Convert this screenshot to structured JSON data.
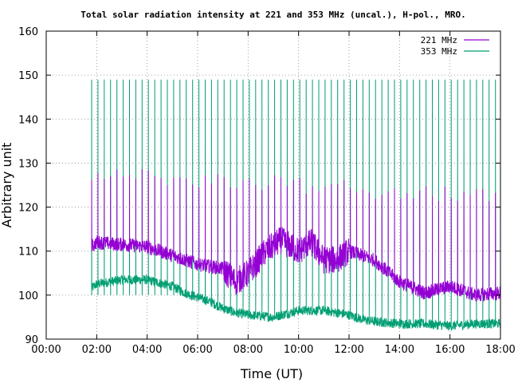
{
  "chart_data": {
    "type": "line",
    "title": "Total solar radiation intensity at 221 and 353 MHz (uncal.), H-pol., MRO.",
    "xlabel": "Time (UT)",
    "ylabel": "Arbitrary unit",
    "xlim": [
      0,
      18
    ],
    "ylim": [
      90,
      160
    ],
    "x_ticks": [
      "00:00",
      "02:00",
      "04:00",
      "06:00",
      "08:00",
      "10:00",
      "12:00",
      "14:00",
      "16:00",
      "18:00"
    ],
    "y_ticks": [
      "90",
      "100",
      "110",
      "120",
      "130",
      "140",
      "150",
      "160"
    ],
    "grid": true,
    "legend_position": "top-right",
    "spike_interval_hours": 0.25,
    "series": [
      {
        "name": "221 MHz",
        "color": "#9400d3",
        "data_start_hour": 1.8,
        "spike_low": 112,
        "spike_high_start": 128,
        "spike_high_end": 122,
        "baseline": [
          [
            1.8,
            111
          ],
          [
            2,
            112
          ],
          [
            3,
            111.5
          ],
          [
            4,
            111
          ],
          [
            5,
            109
          ],
          [
            6,
            107
          ],
          [
            7,
            106
          ],
          [
            7.5,
            103
          ],
          [
            8,
            105
          ],
          [
            8.7,
            110
          ],
          [
            9.3,
            112.5
          ],
          [
            10,
            110
          ],
          [
            10.5,
            112
          ],
          [
            11,
            108
          ],
          [
            11.5,
            108
          ],
          [
            12,
            110
          ],
          [
            13,
            108
          ],
          [
            14,
            103
          ],
          [
            15,
            100.5
          ],
          [
            16,
            102
          ],
          [
            17,
            100
          ],
          [
            18,
            100.5
          ]
        ]
      },
      {
        "name": "353 MHz",
        "color": "#009e73",
        "data_start_hour": 1.8,
        "spike_low": 100,
        "spike_high": 149,
        "baseline": [
          [
            1.8,
            101.5
          ],
          [
            2,
            102.5
          ],
          [
            3,
            103.5
          ],
          [
            4,
            103.5
          ],
          [
            5,
            102
          ],
          [
            5.5,
            100.5
          ],
          [
            6,
            99.5
          ],
          [
            6.5,
            98.5
          ],
          [
            7,
            97
          ],
          [
            7.5,
            96
          ],
          [
            8,
            95.5
          ],
          [
            9,
            95
          ],
          [
            10,
            96.5
          ],
          [
            11,
            96.5
          ],
          [
            12,
            95.5
          ],
          [
            12.5,
            94.5
          ],
          [
            13,
            94
          ],
          [
            14,
            93.5
          ],
          [
            15,
            93.5
          ],
          [
            16,
            93
          ],
          [
            17,
            93.5
          ],
          [
            18,
            93.5
          ]
        ]
      }
    ]
  }
}
